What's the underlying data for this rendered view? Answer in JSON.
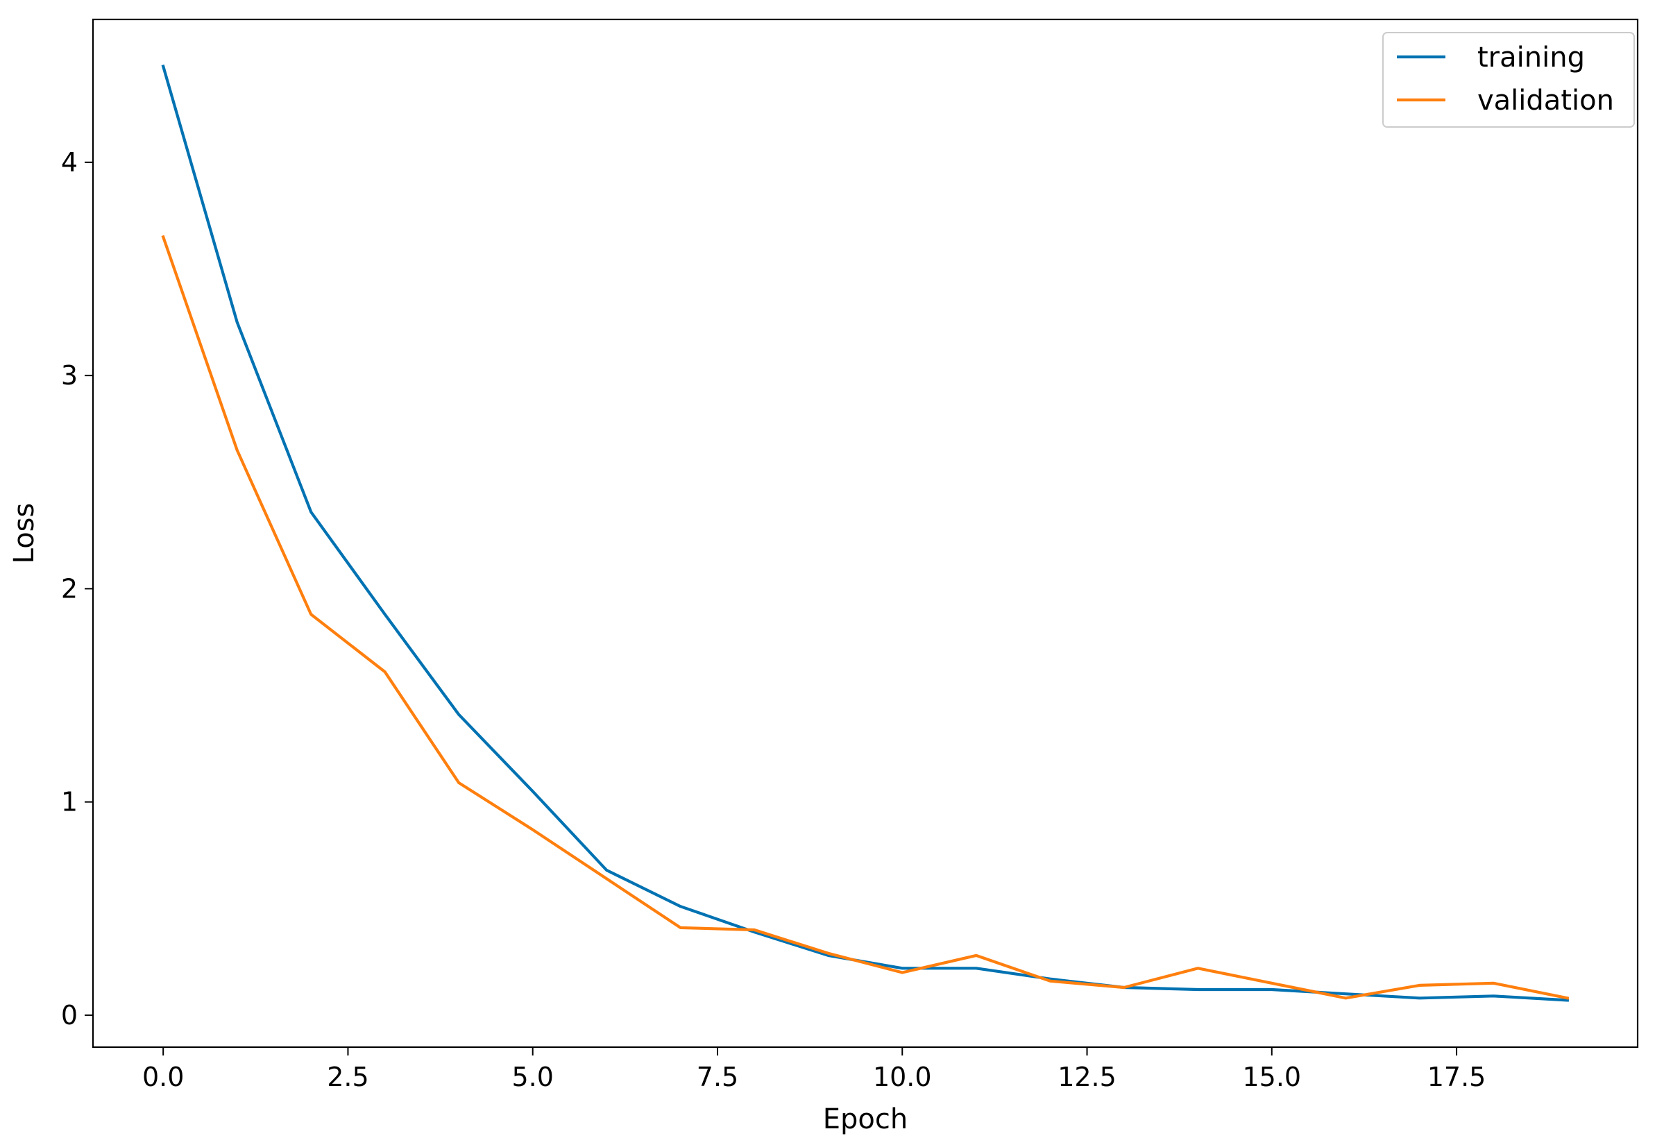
{
  "chart_data": {
    "type": "line",
    "title": "",
    "xlabel": "Epoch",
    "ylabel": "Loss",
    "xlim": [
      -0.95,
      19.95
    ],
    "ylim": [
      -0.15,
      4.67
    ],
    "xticks": [
      0.0,
      2.5,
      5.0,
      7.5,
      10.0,
      12.5,
      15.0,
      17.5
    ],
    "xtick_labels": [
      "0.0",
      "2.5",
      "5.0",
      "7.5",
      "10.0",
      "12.5",
      "15.0",
      "17.5"
    ],
    "yticks": [
      0,
      1,
      2,
      3,
      4
    ],
    "ytick_labels": [
      "0",
      "1",
      "2",
      "3",
      "4"
    ],
    "grid": false,
    "legend_position": "top-right",
    "x": [
      0,
      1,
      2,
      3,
      4,
      5,
      6,
      7,
      8,
      9,
      10,
      11,
      12,
      13,
      14,
      15,
      16,
      17,
      18,
      19
    ],
    "series": [
      {
        "name": "training",
        "color": "#0072B2",
        "values": [
          4.45,
          3.25,
          2.36,
          1.88,
          1.41,
          1.05,
          0.68,
          0.51,
          0.39,
          0.28,
          0.22,
          0.22,
          0.17,
          0.13,
          0.12,
          0.12,
          0.1,
          0.08,
          0.09,
          0.07
        ]
      },
      {
        "name": "validation",
        "color": "#FF7F0E",
        "values": [
          3.65,
          2.65,
          1.88,
          1.61,
          1.09,
          0.87,
          0.64,
          0.41,
          0.4,
          0.29,
          0.2,
          0.28,
          0.16,
          0.13,
          0.22,
          0.15,
          0.08,
          0.14,
          0.15,
          0.08
        ]
      }
    ]
  }
}
